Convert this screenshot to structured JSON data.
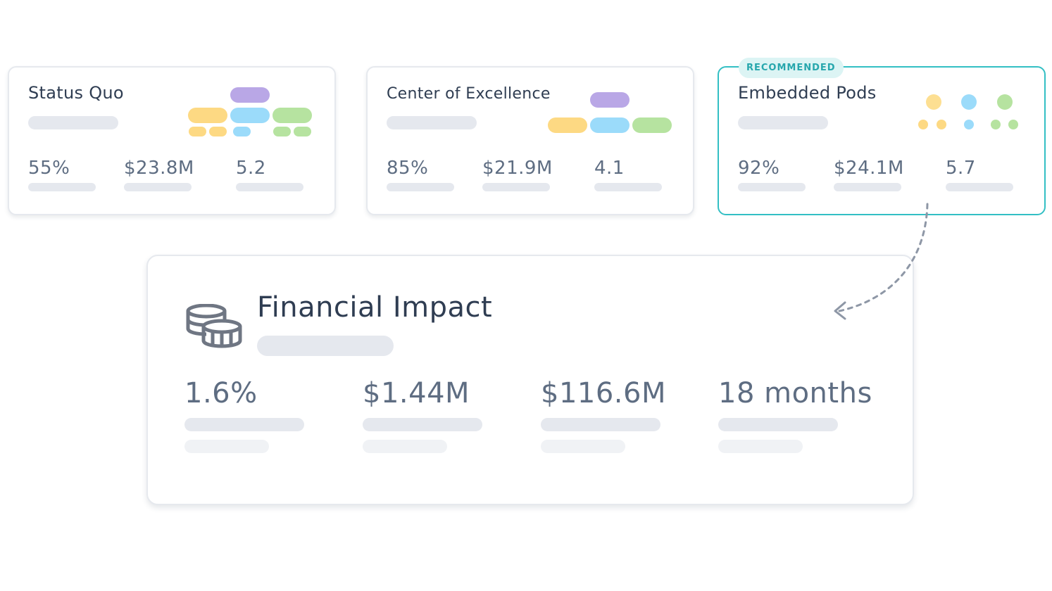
{
  "colors": {
    "accent": "#33bfc4",
    "purple": "#b9a7e6",
    "yellow": "#fdd983",
    "blue": "#9bdbfa",
    "green": "#b6e3a0",
    "skeleton": "#e5e8ee",
    "text": "#2f3d52",
    "muted_text": "#5e6d82"
  },
  "cards": [
    {
      "title": "Status Quo",
      "metrics": {
        "percent": "55%",
        "amount": "$23.8M",
        "score": "5.2"
      }
    },
    {
      "title": "Center of Excellence",
      "metrics": {
        "percent": "85%",
        "amount": "$21.9M",
        "score": "4.1"
      }
    },
    {
      "title": "Embedded Pods",
      "badge": "RECOMMENDED",
      "metrics": {
        "percent": "92%",
        "amount": "$24.1M",
        "score": "5.7"
      }
    }
  ],
  "impact": {
    "title": "Financial Impact",
    "icon": "coins-icon",
    "metrics": [
      "1.6%",
      "$1.44M",
      "$116.6M",
      "18 months"
    ]
  }
}
